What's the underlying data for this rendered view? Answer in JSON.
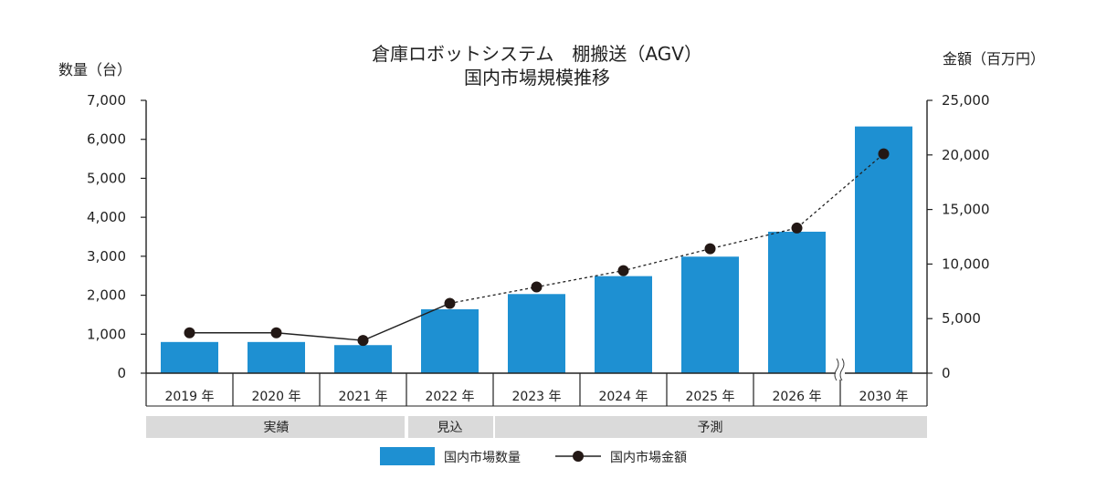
{
  "chart_data": {
    "type": "bar+line",
    "title_line1": "倉庫ロボットシステム　棚搬送（AGV）",
    "title_line2": "国内市場規模推移",
    "ylabel_left": "数量（台）",
    "ylabel_right": "金額（百万円）",
    "ylim_left": [
      0,
      7000
    ],
    "ylim_right": [
      0,
      25000
    ],
    "yticks_left": [
      "0",
      "1,000",
      "2,000",
      "3,000",
      "4,000",
      "5,000",
      "6,000",
      "7,000"
    ],
    "yticks_right": [
      "0",
      "5,000",
      "10,000",
      "15,000",
      "20,000",
      "25,000"
    ],
    "categories": [
      "2019 年",
      "2020 年",
      "2021 年",
      "2022 年",
      "2023 年",
      "2024 年",
      "2025 年",
      "2026 年",
      "2030 年"
    ],
    "series": [
      {
        "name": "国内市場数量",
        "kind": "bar",
        "axis": "left",
        "color": "#1e90d2",
        "values": [
          800,
          800,
          720,
          1640,
          2030,
          2490,
          2990,
          3630,
          6330
        ]
      },
      {
        "name": "国内市場金額",
        "kind": "line",
        "axis": "right",
        "color": "#222222",
        "values": [
          3700,
          3700,
          3000,
          6400,
          7900,
          9400,
          11400,
          13300,
          20100
        ]
      }
    ],
    "phases": [
      {
        "label": "実績",
        "start": 0,
        "end": 2
      },
      {
        "label": "見込",
        "start": 3,
        "end": 3
      },
      {
        "label": "予測",
        "start": 4,
        "end": 8
      }
    ],
    "axis_break_before_index": 8,
    "solid_line_until_index": 3,
    "legend_position": "bottom-center",
    "grid": false
  }
}
